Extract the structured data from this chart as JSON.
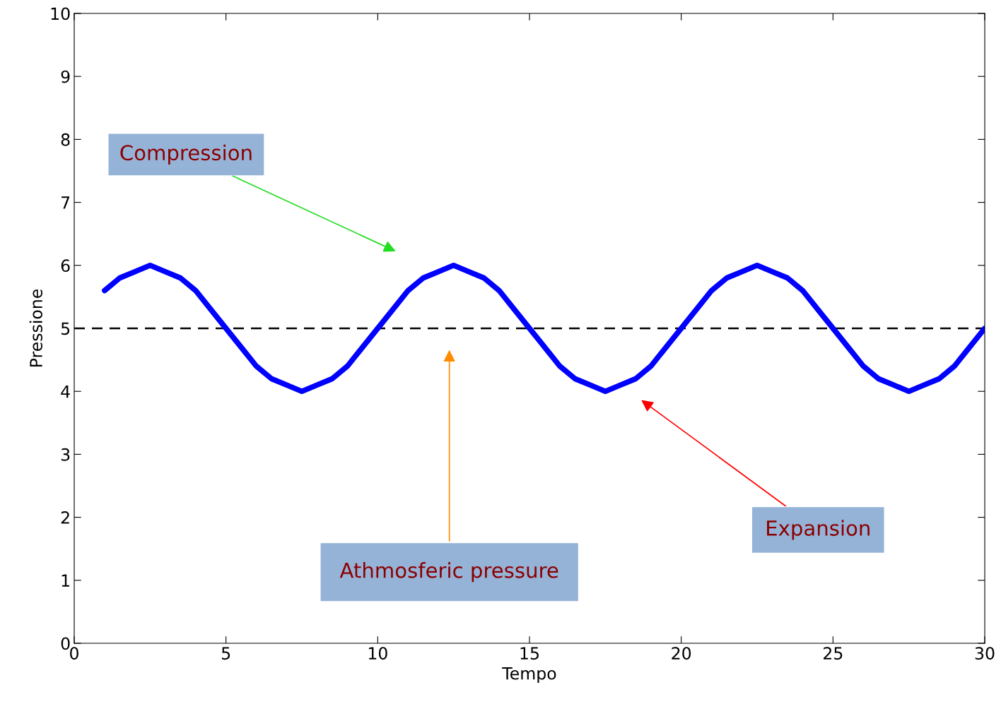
{
  "chart_data": {
    "type": "line",
    "xlabel": "Tempo",
    "ylabel": "Pressione",
    "x": [
      1,
      1.5,
      2,
      2.5,
      3,
      3.5,
      4,
      4.5,
      5,
      5.5,
      6,
      6.5,
      7,
      7.5,
      8,
      8.5,
      9,
      9.5,
      10,
      10.5,
      11,
      11.5,
      12,
      12.5,
      13,
      13.5,
      14,
      14.5,
      15,
      15.5,
      16,
      16.5,
      17,
      17.5,
      18,
      18.5,
      19,
      19.5,
      20,
      20.5,
      21,
      21.5,
      22,
      22.5,
      23,
      23.5,
      24,
      24.5,
      25,
      25.5,
      26,
      26.5,
      27,
      27.5,
      28,
      28.5,
      29,
      29.5,
      30
    ],
    "series": [
      {
        "color": "#0000ff",
        "values": [
          5.6,
          5.8,
          5.9,
          6.0,
          5.9,
          5.8,
          5.6,
          5.3,
          5.0,
          4.7,
          4.4,
          4.2,
          4.1,
          4.0,
          4.1,
          4.2,
          4.4,
          4.7,
          5.0,
          5.3,
          5.6,
          5.8,
          5.9,
          6.0,
          5.9,
          5.8,
          5.6,
          5.3,
          5.0,
          4.7,
          4.4,
          4.2,
          4.1,
          4.0,
          4.1,
          4.2,
          4.4,
          4.7,
          5.0,
          5.3,
          5.6,
          5.8,
          5.9,
          6.0,
          5.9,
          5.8,
          5.6,
          5.3,
          5.0,
          4.7,
          4.4,
          4.2,
          4.1,
          4.0,
          4.1,
          4.2,
          4.4,
          4.7,
          5.0
        ]
      }
    ],
    "xlim": [
      0,
      30
    ],
    "xticks": [
      0,
      5,
      10,
      15,
      20,
      25,
      30
    ],
    "ylim": [
      0,
      10
    ],
    "yticks": [
      0,
      1,
      2,
      3,
      4,
      5,
      6,
      7,
      8,
      9,
      10
    ],
    "ref_lines": [
      {
        "axis": "y",
        "value": 5,
        "color": "#000000",
        "line_style": "dashed"
      }
    ],
    "annotations": [
      "Compression",
      "Athmosferic pressure",
      "Expansion"
    ],
    "grid": false,
    "legend": false,
    "marker": "none",
    "line_style": "solid"
  }
}
